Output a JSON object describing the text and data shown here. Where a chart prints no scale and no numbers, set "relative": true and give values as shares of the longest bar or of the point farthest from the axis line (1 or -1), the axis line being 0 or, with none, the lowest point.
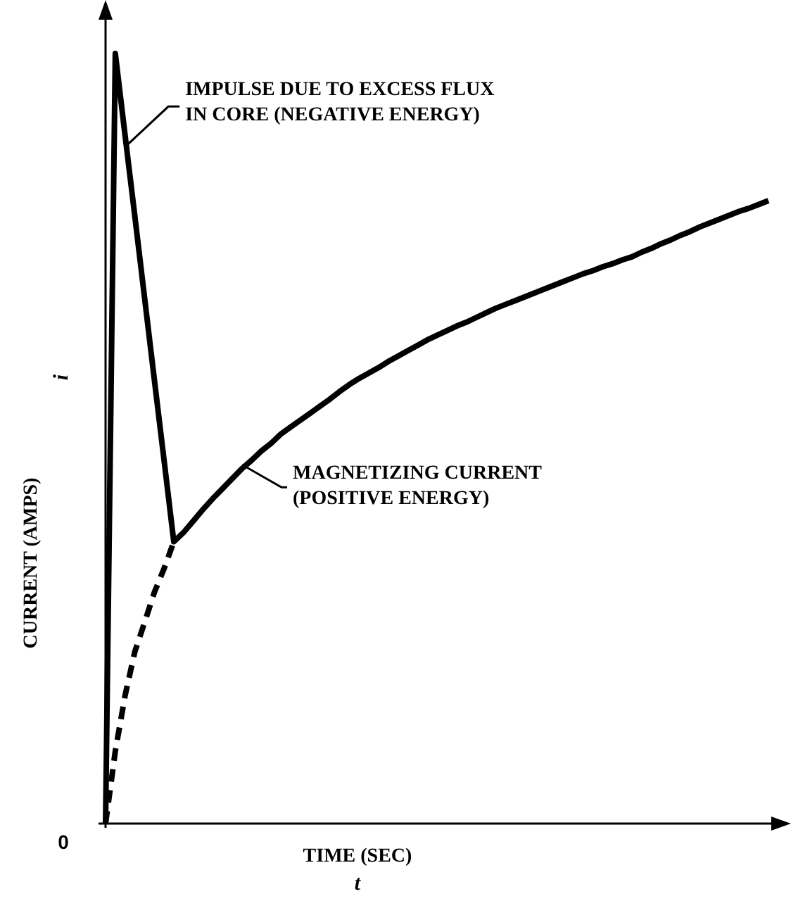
{
  "chart_data": {
    "type": "line",
    "relative": true,
    "xlabel": "TIME (SEC)",
    "ylabel": "CURRENT (AMPS)",
    "categories": [
      null,
      null,
      null,
      null,
      null,
      null,
      null,
      null,
      null,
      null,
      null,
      null,
      null,
      null,
      null,
      null,
      null,
      null,
      null,
      null,
      null,
      null,
      null,
      null,
      null,
      null,
      null,
      null,
      null,
      null,
      null,
      null,
      null,
      null,
      null,
      null,
      null,
      null,
      null,
      null,
      null,
      null,
      null,
      null,
      null,
      null,
      null,
      null,
      null,
      null,
      null,
      null,
      null,
      null,
      null,
      null,
      null,
      null,
      null,
      null,
      null,
      null,
      null,
      null,
      null,
      null,
      null,
      null,
      null
    ],
    "series": [
      {
        "color": "#000000",
        "line_style": "solid",
        "values": [
          0,
          1,
          0.894,
          0.789,
          0.683,
          0.577,
          0.472,
          0.366,
          0.378,
          0.393,
          0.408,
          0.422,
          0.435,
          0.448,
          0.461,
          0.472,
          0.484,
          0.494,
          0.506,
          0.515,
          0.524,
          0.533,
          0.542,
          0.551,
          0.561,
          0.57,
          0.578,
          0.585,
          0.592,
          0.6,
          0.607,
          0.614,
          0.621,
          0.628,
          0.634,
          0.64,
          0.646,
          0.651,
          0.657,
          0.663,
          0.669,
          0.674,
          0.679,
          0.684,
          0.689,
          0.694,
          0.699,
          0.704,
          0.709,
          0.714,
          0.718,
          0.723,
          0.727,
          0.732,
          0.736,
          0.742,
          0.747,
          0.753,
          0.758,
          0.764,
          0.769,
          0.775,
          0.78,
          0.785,
          0.79,
          0.795,
          0.799,
          0.804,
          0.809
        ]
      },
      {
        "color": "#000000",
        "line_style": "dashed",
        "values": [
          0,
          0.094,
          0.166,
          0.223,
          0.261,
          0.3,
          0.331,
          0.366,
          null,
          null,
          null,
          null,
          null,
          null,
          null,
          null,
          null,
          null,
          null,
          null,
          null,
          null,
          null,
          null,
          null,
          null,
          null,
          null,
          null,
          null,
          null,
          null,
          null,
          null,
          null,
          null,
          null,
          null,
          null,
          null,
          null,
          null,
          null,
          null,
          null,
          null,
          null,
          null,
          null,
          null,
          null,
          null,
          null,
          null,
          null,
          null,
          null,
          null,
          null,
          null,
          null,
          null,
          null,
          null,
          null,
          null,
          null,
          null,
          null
        ]
      }
    ],
    "annotations": [
      "IMPULSE DUE TO EXCESS FLUX\nIN CORE (NEGATIVE ENERGY)",
      "MAGNETIZING CURRENT\n(POSITIVE ENERGY)",
      "0",
      "i",
      "t"
    ]
  }
}
